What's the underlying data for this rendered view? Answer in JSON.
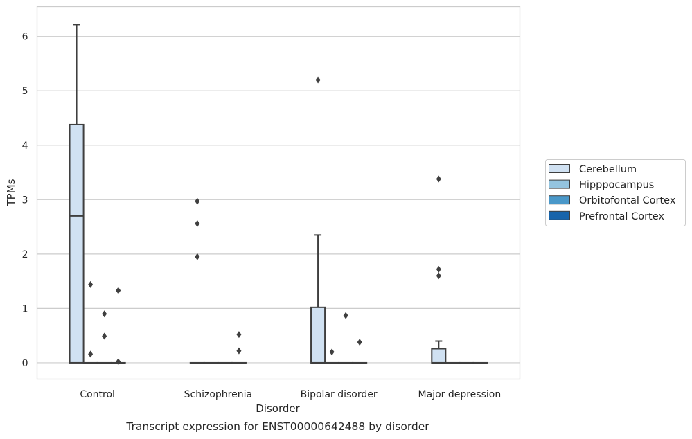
{
  "chart_data": {
    "type": "box",
    "xlabel": "Disorder",
    "ylabel": "TPMs",
    "caption": "Transcript expression for ENST00000642488 by disorder",
    "categories": [
      "Control",
      "Schizophrenia",
      "Bipolar disorder",
      "Major depression"
    ],
    "y_ticks": [
      0,
      1,
      2,
      3,
      4,
      5,
      6
    ],
    "ylim": [
      -0.3,
      6.55
    ],
    "grid": "horizontal",
    "legend_position": "right",
    "series": [
      {
        "name": "Cerebellum",
        "color": "#d0e1f2",
        "boxes": [
          {
            "min": 0,
            "q1": 0,
            "median": 2.7,
            "q3": 4.38,
            "max": 6.22,
            "outliers": []
          },
          {
            "min": 0,
            "q1": 0,
            "median": 0,
            "q3": 0,
            "max": 0,
            "outliers": [
              1.95,
              2.56,
              2.97
            ]
          },
          {
            "min": 0,
            "q1": 0,
            "median": 0,
            "q3": 1.02,
            "max": 2.35,
            "outliers": [
              5.2
            ]
          },
          {
            "min": 0,
            "q1": 0,
            "median": 0,
            "q3": 0.26,
            "max": 0.4,
            "outliers": [
              1.6,
              1.72,
              3.38
            ]
          }
        ]
      },
      {
        "name": "Hipppocampus",
        "color": "#94c4df",
        "boxes": [
          {
            "min": 0,
            "q1": 0,
            "median": 0,
            "q3": 0,
            "max": 0,
            "outliers": [
              0.16,
              1.44
            ]
          },
          {
            "min": 0,
            "q1": 0,
            "median": 0,
            "q3": 0,
            "max": 0,
            "outliers": []
          },
          {
            "min": 0,
            "q1": 0,
            "median": 0,
            "q3": 0,
            "max": 0,
            "outliers": [
              0.2
            ]
          },
          {
            "min": 0,
            "q1": 0,
            "median": 0,
            "q3": 0,
            "max": 0,
            "outliers": []
          }
        ]
      },
      {
        "name": "Orbitofontal Cortex",
        "color": "#4a98c9",
        "boxes": [
          {
            "min": 0,
            "q1": 0,
            "median": 0,
            "q3": 0,
            "max": 0,
            "outliers": [
              0.49,
              0.9
            ]
          },
          {
            "min": 0,
            "q1": 0,
            "median": 0,
            "q3": 0,
            "max": 0,
            "outliers": []
          },
          {
            "min": 0,
            "q1": 0,
            "median": 0,
            "q3": 0,
            "max": 0,
            "outliers": [
              0.87
            ]
          },
          {
            "min": 0,
            "q1": 0,
            "median": 0,
            "q3": 0,
            "max": 0,
            "outliers": []
          }
        ]
      },
      {
        "name": "Prefrontal Cortex",
        "color": "#1764ab",
        "boxes": [
          {
            "min": 0,
            "q1": 0,
            "median": 0,
            "q3": 0,
            "max": 0,
            "outliers": [
              0.02,
              1.33
            ]
          },
          {
            "min": 0,
            "q1": 0,
            "median": 0,
            "q3": 0,
            "max": 0,
            "outliers": [
              0.22,
              0.52
            ]
          },
          {
            "min": 0,
            "q1": 0,
            "median": 0,
            "q3": 0,
            "max": 0,
            "outliers": [
              0.38
            ]
          },
          {
            "min": 0,
            "q1": 0,
            "median": 0,
            "q3": 0,
            "max": 0,
            "outliers": []
          }
        ]
      }
    ]
  }
}
